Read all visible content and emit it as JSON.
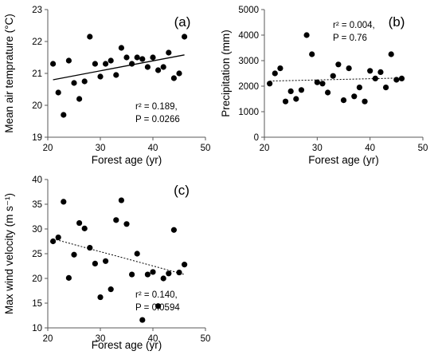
{
  "chart_data": [
    {
      "id": "a",
      "type": "scatter",
      "panel_label": "(a)",
      "xlabel": "Forest age (yr)",
      "ylabel": "Mean air temprature (°C)",
      "xlim": [
        20,
        50
      ],
      "ylim": [
        19,
        23
      ],
      "xticks": [
        20,
        30,
        40,
        50
      ],
      "yticks": [
        19,
        20,
        21,
        22,
        23
      ],
      "x": [
        21,
        22,
        23,
        24,
        25,
        26,
        27,
        28,
        29,
        30,
        31,
        32,
        33,
        34,
        35,
        36,
        37,
        38,
        39,
        40,
        41,
        42,
        43,
        44,
        45,
        46
      ],
      "y": [
        21.3,
        20.4,
        19.7,
        21.4,
        20.7,
        20.2,
        20.75,
        22.15,
        21.3,
        20.9,
        21.3,
        21.4,
        20.95,
        21.8,
        21.5,
        21.3,
        21.5,
        21.45,
        21.2,
        21.5,
        21.1,
        21.2,
        21.65,
        20.85,
        21.0,
        22.15
      ],
      "trendline": {
        "x": [
          21,
          46
        ],
        "y": [
          20.8,
          21.58
        ],
        "style": "solid"
      },
      "annotation": [
        "r² = 0.189,",
        "P = 0.0266"
      ]
    },
    {
      "id": "b",
      "type": "scatter",
      "panel_label": "(b)",
      "xlabel": "Forest age (yr)",
      "ylabel": "Precipitation (mm)",
      "xlim": [
        20,
        50
      ],
      "ylim": [
        0,
        5000
      ],
      "xticks": [
        20,
        30,
        40,
        50
      ],
      "yticks": [
        0,
        1000,
        2000,
        3000,
        4000,
        5000
      ],
      "x": [
        21,
        22,
        23,
        24,
        25,
        26,
        27,
        28,
        29,
        30,
        31,
        32,
        33,
        34,
        35,
        36,
        37,
        38,
        39,
        40,
        41,
        42,
        43,
        44,
        45,
        46
      ],
      "y": [
        2100,
        2500,
        2700,
        1400,
        1800,
        1500,
        1850,
        4000,
        3250,
        2150,
        2100,
        1750,
        2400,
        2850,
        1450,
        2700,
        1600,
        1950,
        1400,
        2600,
        2300,
        2550,
        1950,
        3250,
        2250,
        2300
      ],
      "trendline": {
        "x": [
          21,
          46
        ],
        "y": [
          2200,
          2320
        ],
        "style": "dotted"
      },
      "annotation": [
        "r² = 0.004,",
        "P = 0.76"
      ]
    },
    {
      "id": "c",
      "type": "scatter",
      "panel_label": "(c)",
      "xlabel": "Forest age (yr)",
      "ylabel": "Max wind velocity (m s⁻¹)",
      "xlim": [
        20,
        50
      ],
      "ylim": [
        10,
        40
      ],
      "xticks": [
        20,
        30,
        40,
        50
      ],
      "yticks": [
        10,
        15,
        20,
        25,
        30,
        35,
        40
      ],
      "x": [
        21,
        22,
        23,
        24,
        25,
        26,
        27,
        28,
        29,
        30,
        31,
        32,
        33,
        34,
        35,
        36,
        37,
        38,
        39,
        40,
        41,
        42,
        43,
        44,
        45,
        46
      ],
      "y": [
        27.5,
        28.3,
        35.5,
        20.1,
        24.8,
        31.2,
        30.1,
        26.2,
        23.0,
        16.2,
        23.5,
        17.8,
        31.8,
        35.8,
        31.0,
        20.8,
        25.0,
        11.6,
        20.8,
        21.3,
        14.4,
        20.0,
        21.0,
        29.8,
        21.2,
        22.8
      ],
      "trendline": {
        "x": [
          21,
          46
        ],
        "y": [
          28.0,
          20.8
        ],
        "style": "dotted"
      },
      "annotation": [
        "r² = 0.140,",
        "P = 0.0594"
      ]
    }
  ]
}
